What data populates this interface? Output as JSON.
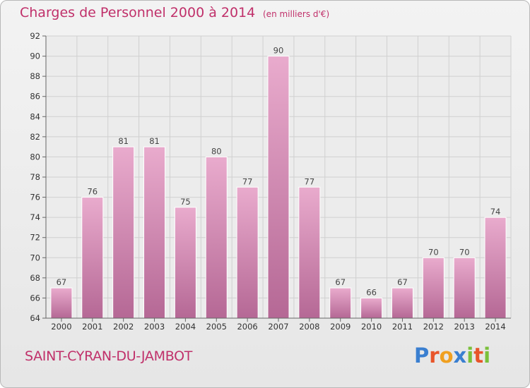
{
  "title": "Charges de Personnel 2000 à 2014",
  "subtitle": "(en milliers d'€)",
  "town": "SAINT-CYRAN-DU-JAMBOT",
  "logo": {
    "text": "Proxiti",
    "letters": [
      {
        "ch": "P",
        "color": "#3a7fd0"
      },
      {
        "ch": "r",
        "color": "#e8552a"
      },
      {
        "ch": "o",
        "color": "#f0a020"
      },
      {
        "ch": "x",
        "color": "#3a7fd0"
      },
      {
        "ch": "i",
        "color": "#7ac03a"
      },
      {
        "ch": "t",
        "color": "#e8552a"
      },
      {
        "ch": "i",
        "color": "#7ac03a"
      }
    ]
  },
  "colors": {
    "accent": "#c0306a",
    "bar_top": "#e8a8cc",
    "bar_bottom": "#b86a98",
    "grid": "#cfcfcf"
  },
  "chart_data": {
    "type": "bar",
    "categories": [
      "2000",
      "2001",
      "2002",
      "2003",
      "2004",
      "2005",
      "2006",
      "2007",
      "2008",
      "2009",
      "2010",
      "2011",
      "2012",
      "2013",
      "2014"
    ],
    "values": [
      67,
      76,
      81,
      81,
      75,
      80,
      77,
      90,
      77,
      67,
      66,
      67,
      70,
      70,
      74
    ],
    "ylim": [
      64,
      92
    ],
    "yticks": [
      64,
      66,
      68,
      70,
      72,
      74,
      76,
      78,
      80,
      82,
      84,
      86,
      88,
      90,
      92
    ],
    "grid": true,
    "data_labels": true
  }
}
